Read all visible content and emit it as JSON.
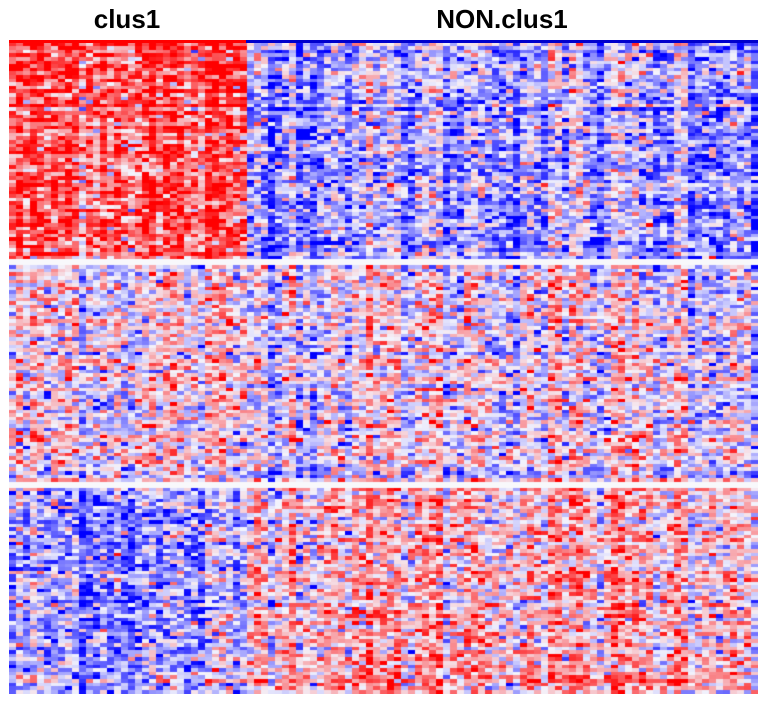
{
  "chart_data": {
    "type": "heatmap",
    "column_groups": [
      {
        "label": "clus1",
        "color": "#ff0000",
        "n_columns": 34
      },
      {
        "label": "NON.clus1",
        "color": "#0000cc",
        "n_columns": 73
      }
    ],
    "row_groups": [
      {
        "n_rows": 60
      },
      {
        "n_rows": 60
      },
      {
        "n_rows": 57
      }
    ],
    "block_means": [
      [
        1.6,
        -0.7
      ],
      [
        0.1,
        0.0
      ],
      [
        -0.9,
        0.6
      ]
    ],
    "colors": {
      "low": "#0000ff",
      "mid": "#f4f4fc",
      "high": "#ff0000"
    }
  }
}
